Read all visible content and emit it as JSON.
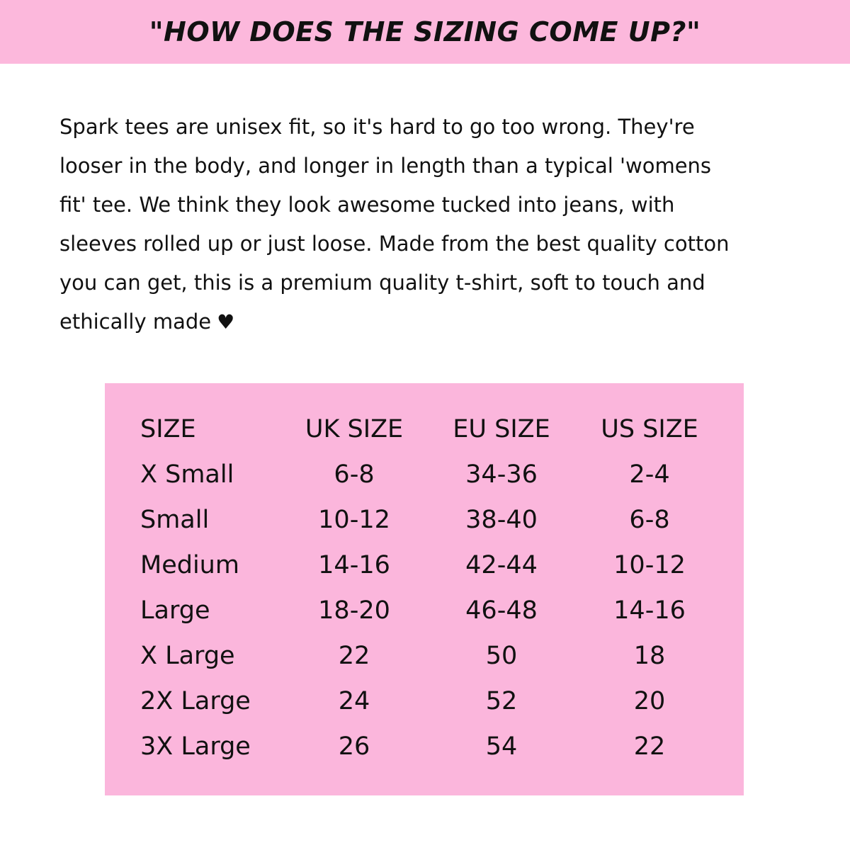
{
  "header": {
    "title": "\"HOW DOES THE SIZING COME UP?\""
  },
  "description": {
    "lines": [
      "Spark tees are unisex fit, so it's hard to go too wrong. They're",
      "looser in the body, and longer in length than a typical 'womens",
      "fit' tee. We think they look awesome tucked into jeans, with",
      "sleeves rolled up or just loose. Made from the best quality cotton",
      "you can get, this is a premium quality t-shirt, soft to touch and",
      "ethically made"
    ],
    "icon": "heart-icon"
  },
  "colors": {
    "accent": "#fbb6dc"
  },
  "size_table": {
    "headers": [
      "SIZE",
      "UK SIZE",
      "EU SIZE",
      "US SIZE"
    ],
    "rows": [
      [
        "X Small",
        "6-8",
        "34-36",
        "2-4"
      ],
      [
        "Small",
        "10-12",
        "38-40",
        "6-8"
      ],
      [
        "Medium",
        "14-16",
        "42-44",
        "10-12"
      ],
      [
        "Large",
        "18-20",
        "46-48",
        "14-16"
      ],
      [
        "X Large",
        "22",
        "50",
        "18"
      ],
      [
        "2X Large",
        "24",
        "52",
        "20"
      ],
      [
        "3X Large",
        "26",
        "54",
        "22"
      ]
    ]
  }
}
